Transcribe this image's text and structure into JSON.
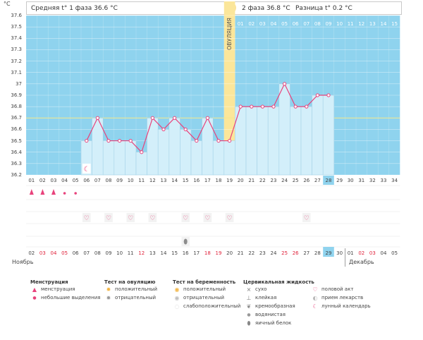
{
  "chart_data": {
    "type": "line",
    "yunit": "°C",
    "ylim": [
      36.2,
      37.6
    ],
    "yticks": [
      "36.2",
      "36.3",
      "36.4",
      "36.5",
      "36.6",
      "36.7",
      "36.8",
      "36.9",
      "37",
      "37.1",
      "37.2",
      "37.3",
      "37.4",
      "37.5",
      "37.6"
    ],
    "cycle_days": [
      "01",
      "02",
      "03",
      "04",
      "05",
      "06",
      "07",
      "08",
      "09",
      "10",
      "11",
      "12",
      "13",
      "14",
      "15",
      "16",
      "17",
      "18",
      "19",
      "20",
      "21",
      "22",
      "23",
      "24",
      "25",
      "26",
      "27",
      "28",
      "29",
      "30",
      "31",
      "32",
      "33",
      "34"
    ],
    "temperatures": [
      null,
      null,
      null,
      null,
      null,
      36.5,
      36.7,
      36.5,
      36.5,
      36.5,
      36.4,
      36.7,
      36.6,
      36.7,
      36.6,
      36.5,
      36.7,
      36.5,
      36.5,
      36.8,
      36.8,
      36.8,
      36.8,
      37.0,
      36.8,
      36.8,
      36.9,
      36.9,
      null,
      null,
      null,
      null,
      null,
      null
    ],
    "current_day": "28",
    "ovulation_day": 19,
    "ovulation_label": "ОВУЛЯЦИЯ",
    "average_line": 36.7,
    "phase2_days": [
      "01",
      "02",
      "03",
      "04",
      "05",
      "06",
      "07",
      "08",
      "09",
      "10",
      "11",
      "12",
      "13",
      "14",
      "15"
    ],
    "dates": [
      "02",
      "03",
      "04",
      "05",
      "06",
      "07",
      "08",
      "09",
      "10",
      "11",
      "12",
      "13",
      "14",
      "15",
      "16",
      "17",
      "18",
      "19",
      "20",
      "21",
      "22",
      "23",
      "24",
      "25",
      "26",
      "27",
      "28",
      "29",
      "30",
      "01",
      "02",
      "03",
      "04",
      "05"
    ],
    "holiday_days": [
      2,
      3,
      4,
      11,
      17,
      18,
      24,
      25,
      31,
      32
    ],
    "current_date": "29",
    "month_start": "Ноябрь",
    "month_end": "Декабрь",
    "menstruation_days": [
      1,
      2,
      3
    ],
    "light_discharge_days": [
      4,
      5
    ],
    "intercourse_days": [
      6,
      8,
      10,
      12,
      15,
      17,
      19,
      26
    ],
    "moon_day": 6,
    "egg_white_day": 15
  },
  "header": {
    "phase1": "Средняя t° 1 фаза 36.6 °C",
    "phase2": "2 фаза 36.8 °C",
    "diff": "Разница t° 0.2 °C",
    "sun_icon": "sun-icon"
  },
  "legend": {
    "menstruation": {
      "title": "Менструация",
      "items": [
        "менструация",
        "небольшие выделения"
      ]
    },
    "ovulation_test": {
      "title": "Тест на овуляцию",
      "items": [
        "положительный",
        "отрицательный"
      ]
    },
    "pregnancy_test": {
      "title": "Тест на беременность",
      "items": [
        "положительный",
        "отрицательный",
        "слабоположительный"
      ]
    },
    "cervical": {
      "title": "Цервикальная жидкость",
      "items": [
        "сухо",
        "клейкая",
        "кремообразная",
        "водянистая",
        "яичный белок"
      ]
    },
    "other": {
      "items": [
        "половой акт",
        "прием лекарств",
        "лунный календарь"
      ]
    }
  },
  "colors": {
    "sky": "#8fd3ee",
    "bar": "#d3effa",
    "bar_border": "#a6d3e8",
    "line": "#e8437c",
    "ovulation": "#fbe69a",
    "avg_line": "#f4e88a",
    "current": "#8fd3ee",
    "holiday": "#e0213a"
  }
}
